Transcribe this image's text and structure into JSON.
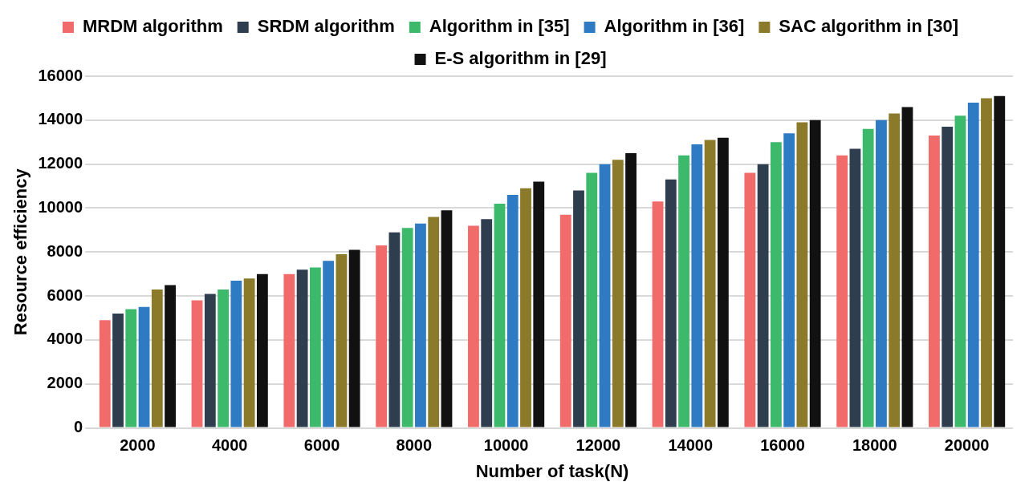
{
  "chart_data": {
    "type": "bar",
    "xlabel": "Number of task(N)",
    "ylabel": "Resource efficiency",
    "categories": [
      "2000",
      "4000",
      "6000",
      "8000",
      "10000",
      "12000",
      "14000",
      "16000",
      "18000",
      "20000"
    ],
    "series": [
      {
        "name": "MRDM algorithm",
        "color": "#f26b6b",
        "values": [
          4900,
          5800,
          7000,
          8300,
          9200,
          9700,
          10300,
          11600,
          12400,
          13300
        ]
      },
      {
        "name": "SRDM algorithm",
        "color": "#2f3e4e",
        "values": [
          5200,
          6100,
          7200,
          8900,
          9500,
          10800,
          11300,
          12000,
          12700,
          13700
        ]
      },
      {
        "name": "Algorithm in [35]",
        "color": "#3cb96a",
        "values": [
          5400,
          6300,
          7300,
          9100,
          10200,
          11600,
          12400,
          13000,
          13600,
          14200
        ]
      },
      {
        "name": "Algorithm in [36]",
        "color": "#2e7bc4",
        "values": [
          5500,
          6700,
          7600,
          9300,
          10600,
          12000,
          12900,
          13400,
          14000,
          14800
        ]
      },
      {
        "name": "SAC algorithm in [30]",
        "color": "#8b7a2a",
        "values": [
          6300,
          6800,
          7900,
          9600,
          10900,
          12200,
          13100,
          13900,
          14300,
          15000
        ]
      },
      {
        "name": "E-S algorithm in [29]",
        "color": "#111111",
        "values": [
          6500,
          7000,
          8100,
          9900,
          11200,
          12500,
          13200,
          14000,
          14600,
          15100
        ]
      }
    ],
    "ylim": [
      0,
      16000
    ],
    "yticks": [
      0,
      2000,
      4000,
      6000,
      8000,
      10000,
      12000,
      14000,
      16000
    ],
    "grid": "y",
    "legend": "top"
  }
}
